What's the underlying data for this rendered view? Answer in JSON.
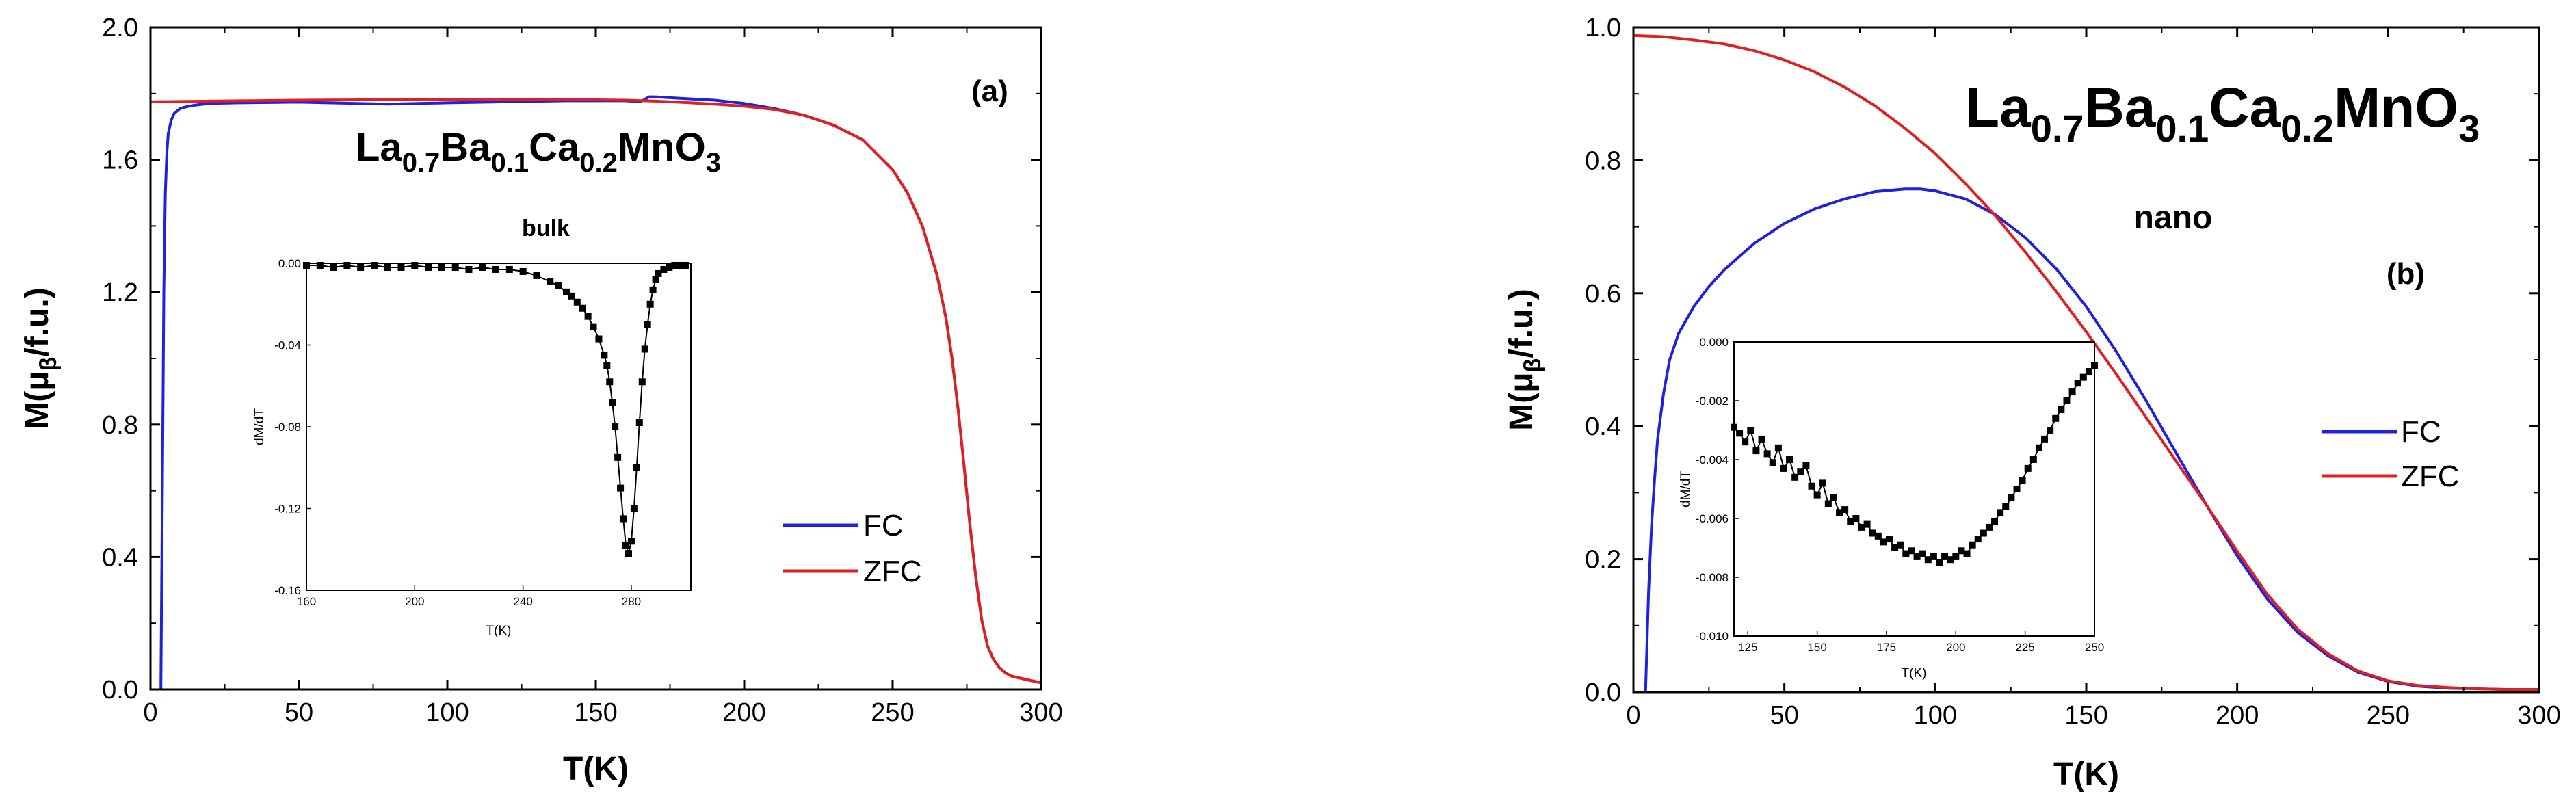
{
  "chart_data": [
    {
      "type": "line",
      "panel_label": "(a)",
      "compound": {
        "parts": [
          [
            "La",
            ""
          ],
          [
            "0.7",
            "sub"
          ],
          [
            "Ba",
            ""
          ],
          [
            "0.1",
            "sub"
          ],
          [
            "Ca",
            ""
          ],
          [
            "0.2",
            "sub"
          ],
          [
            "MnO",
            ""
          ],
          [
            "3",
            "sub"
          ]
        ]
      },
      "sample": "bulk",
      "xlabel": "T(K)",
      "ylabel": {
        "main": "M(",
        "mu": "μ",
        "sub": "β",
        "tail": "/f.u.)"
      },
      "xlim": [
        0,
        300
      ],
      "ylim": [
        0,
        2.0
      ],
      "xticks": [
        "0",
        "50",
        "100",
        "150",
        "200",
        "250",
        "300"
      ],
      "yticks": [
        "0.0",
        "0.4",
        "0.8",
        "1.2",
        "1.6",
        "2.0"
      ],
      "legend": {
        "position": "lower-right",
        "entries": [
          "FC",
          "ZFC"
        ]
      },
      "series": [
        {
          "name": "FC",
          "color": "#2020e0",
          "x": [
            3.5,
            4,
            4.5,
            5,
            5.5,
            6,
            7,
            8,
            10,
            12,
            15,
            20,
            30,
            40,
            50,
            60,
            80,
            100,
            120,
            140,
            160,
            165,
            168,
            170,
            180,
            190,
            200,
            210,
            220,
            230,
            240,
            250,
            255,
            260,
            265,
            268,
            270,
            272,
            274,
            276,
            278,
            280,
            282,
            284,
            286,
            288,
            290,
            295,
            300
          ],
          "y": [
            0.0,
            0.6,
            1.2,
            1.5,
            1.62,
            1.68,
            1.72,
            1.74,
            1.755,
            1.76,
            1.765,
            1.77,
            1.772,
            1.773,
            1.774,
            1.772,
            1.768,
            1.772,
            1.775,
            1.778,
            1.778,
            1.775,
            1.79,
            1.79,
            1.785,
            1.78,
            1.77,
            1.755,
            1.735,
            1.705,
            1.66,
            1.57,
            1.5,
            1.4,
            1.25,
            1.12,
            1.0,
            0.85,
            0.68,
            0.5,
            0.34,
            0.21,
            0.13,
            0.09,
            0.065,
            0.05,
            0.04,
            0.03,
            0.02
          ]
        },
        {
          "name": "ZFC",
          "color": "#e02020",
          "x": [
            0,
            10,
            20,
            30,
            50,
            70,
            100,
            130,
            150,
            160,
            170,
            180,
            190,
            200,
            210,
            220,
            230,
            240,
            250,
            255,
            260,
            265,
            268,
            270,
            272,
            274,
            276,
            278,
            280,
            282,
            284,
            286,
            288,
            290,
            295,
            300
          ],
          "y": [
            1.775,
            1.776,
            1.777,
            1.778,
            1.78,
            1.781,
            1.782,
            1.782,
            1.781,
            1.78,
            1.777,
            1.773,
            1.768,
            1.762,
            1.752,
            1.735,
            1.705,
            1.66,
            1.57,
            1.5,
            1.4,
            1.25,
            1.12,
            1.0,
            0.85,
            0.68,
            0.5,
            0.34,
            0.21,
            0.13,
            0.09,
            0.065,
            0.05,
            0.04,
            0.03,
            0.02
          ]
        }
      ],
      "inset": {
        "type": "scatter",
        "xlabel": "T(K)",
        "ylabel": "dM/dT",
        "xlim": [
          160,
          302
        ],
        "ylim": [
          -0.16,
          0.0
        ],
        "xticks": [
          "160",
          "200",
          "240",
          "280"
        ],
        "yticks": [
          "0.00",
          "-0.04",
          "-0.08",
          "-0.12",
          "-0.16"
        ],
        "x": [
          160,
          165,
          170,
          175,
          180,
          185,
          190,
          195,
          200,
          205,
          210,
          215,
          220,
          225,
          230,
          235,
          240,
          245,
          250,
          253,
          256,
          258,
          260,
          262,
          264,
          266,
          268,
          270,
          271,
          272,
          273,
          274,
          275,
          276,
          277,
          278,
          279,
          280,
          281,
          282,
          283,
          284,
          285,
          286,
          287,
          288,
          289,
          290,
          292,
          294,
          296,
          298,
          300
        ],
        "y": [
          -0.001,
          -0.001,
          -0.002,
          -0.001,
          -0.002,
          -0.001,
          -0.002,
          -0.002,
          -0.001,
          -0.002,
          -0.002,
          -0.002,
          -0.003,
          -0.002,
          -0.003,
          -0.003,
          -0.004,
          -0.006,
          -0.009,
          -0.011,
          -0.014,
          -0.016,
          -0.019,
          -0.022,
          -0.026,
          -0.031,
          -0.037,
          -0.045,
          -0.05,
          -0.058,
          -0.068,
          -0.08,
          -0.095,
          -0.11,
          -0.125,
          -0.138,
          -0.142,
          -0.136,
          -0.12,
          -0.1,
          -0.078,
          -0.058,
          -0.042,
          -0.03,
          -0.02,
          -0.013,
          -0.008,
          -0.005,
          -0.003,
          -0.002,
          -0.001,
          -0.001,
          -0.001
        ]
      }
    },
    {
      "type": "line",
      "panel_label": "(b)",
      "compound": {
        "parts": [
          [
            "La",
            ""
          ],
          [
            "0.7",
            "sub"
          ],
          [
            "Ba",
            ""
          ],
          [
            "0.1",
            "sub"
          ],
          [
            "Ca",
            ""
          ],
          [
            "0.2",
            "sub"
          ],
          [
            "MnO",
            ""
          ],
          [
            "3",
            "sub"
          ]
        ]
      },
      "sample": "nano",
      "xlabel": "T(K)",
      "ylabel": {
        "main": "M(",
        "mu": "μ",
        "sub": "β",
        "tail": "/f.u.)"
      },
      "xlim": [
        0,
        300
      ],
      "ylim": [
        0,
        1.0
      ],
      "xticks": [
        "0",
        "50",
        "100",
        "150",
        "200",
        "250",
        "300"
      ],
      "yticks": [
        "0.0",
        "0.2",
        "0.4",
        "0.6",
        "0.8",
        "1.0"
      ],
      "legend": {
        "position": "right",
        "entries": [
          "FC",
          "ZFC"
        ]
      },
      "series": [
        {
          "name": "FC",
          "color": "#2020e0",
          "x": [
            4,
            5,
            6,
            7,
            8,
            10,
            12,
            15,
            20,
            25,
            30,
            40,
            50,
            60,
            70,
            80,
            90,
            95,
            100,
            110,
            120,
            130,
            140,
            150,
            160,
            170,
            180,
            190,
            200,
            210,
            220,
            230,
            240,
            250,
            260,
            270,
            280,
            290,
            300
          ],
          "y": [
            0.0,
            0.15,
            0.25,
            0.32,
            0.38,
            0.45,
            0.5,
            0.54,
            0.58,
            0.61,
            0.635,
            0.675,
            0.705,
            0.727,
            0.742,
            0.753,
            0.757,
            0.757,
            0.754,
            0.742,
            0.718,
            0.683,
            0.637,
            0.58,
            0.512,
            0.437,
            0.358,
            0.28,
            0.205,
            0.14,
            0.09,
            0.055,
            0.03,
            0.016,
            0.009,
            0.006,
            0.005,
            0.004,
            0.004
          ]
        },
        {
          "name": "ZFC",
          "color": "#e02020",
          "x": [
            0,
            10,
            20,
            30,
            40,
            50,
            60,
            70,
            80,
            90,
            100,
            110,
            120,
            130,
            140,
            150,
            160,
            170,
            180,
            190,
            200,
            210,
            220,
            230,
            240,
            250,
            260,
            270,
            280,
            290,
            300
          ],
          "y": [
            0.988,
            0.986,
            0.981,
            0.975,
            0.965,
            0.951,
            0.933,
            0.91,
            0.882,
            0.848,
            0.81,
            0.765,
            0.716,
            0.661,
            0.603,
            0.542,
            0.478,
            0.412,
            0.346,
            0.28,
            0.212,
            0.147,
            0.095,
            0.058,
            0.032,
            0.017,
            0.01,
            0.007,
            0.005,
            0.004,
            0.004
          ]
        }
      ],
      "inset": {
        "type": "scatter",
        "xlabel": "T(K)",
        "ylabel": "dM/dT",
        "xlim": [
          120,
          250
        ],
        "ylim": [
          -0.01,
          0.0
        ],
        "xticks": [
          "125",
          "150",
          "175",
          "200",
          "225",
          "250"
        ],
        "yticks": [
          "0.000",
          "-0.002",
          "-0.004",
          "-0.006",
          "-0.008",
          "-0.010"
        ],
        "x": [
          120,
          122,
          124,
          126,
          128,
          130,
          132,
          134,
          136,
          138,
          140,
          142,
          144,
          146,
          148,
          150,
          152,
          154,
          156,
          158,
          160,
          162,
          164,
          166,
          168,
          170,
          172,
          174,
          176,
          178,
          180,
          182,
          184,
          186,
          188,
          190,
          192,
          194,
          196,
          198,
          200,
          202,
          204,
          206,
          208,
          210,
          212,
          214,
          216,
          218,
          220,
          222,
          224,
          226,
          228,
          230,
          232,
          234,
          236,
          238,
          240,
          242,
          244,
          246,
          248,
          250
        ],
        "y": [
          -0.0029,
          -0.0031,
          -0.0034,
          -0.003,
          -0.0037,
          -0.0033,
          -0.0038,
          -0.0041,
          -0.0036,
          -0.0043,
          -0.004,
          -0.0046,
          -0.0044,
          -0.0042,
          -0.0049,
          -0.0052,
          -0.0048,
          -0.0055,
          -0.0053,
          -0.0058,
          -0.0057,
          -0.0061,
          -0.006,
          -0.0063,
          -0.0062,
          -0.0065,
          -0.0066,
          -0.0068,
          -0.0067,
          -0.007,
          -0.0069,
          -0.0072,
          -0.0071,
          -0.0073,
          -0.0072,
          -0.0074,
          -0.0073,
          -0.0075,
          -0.0073,
          -0.0074,
          -0.0073,
          -0.0071,
          -0.0072,
          -0.0069,
          -0.0067,
          -0.0065,
          -0.0063,
          -0.0061,
          -0.0058,
          -0.0056,
          -0.0053,
          -0.005,
          -0.0047,
          -0.0043,
          -0.004,
          -0.0036,
          -0.0033,
          -0.003,
          -0.0026,
          -0.0023,
          -0.002,
          -0.0017,
          -0.0014,
          -0.0012,
          -0.001,
          -0.0008
        ]
      }
    }
  ]
}
